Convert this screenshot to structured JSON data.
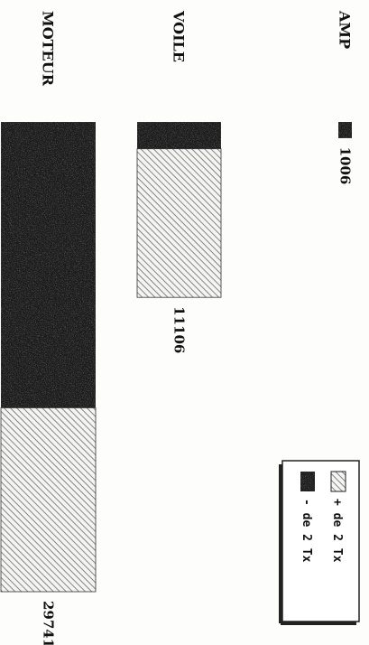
{
  "chart_data": {
    "type": "bar",
    "orientation": "rotated-90-clockwise",
    "stacked": true,
    "title": "",
    "xlabel": "",
    "ylabel": "",
    "categories": [
      "AMP",
      "VOILE",
      "MOTEUR"
    ],
    "totals_labels": [
      "1006",
      "11106",
      "29741"
    ],
    "totals": [
      1006,
      11106,
      29741
    ],
    "series": [
      {
        "name": "- de 2 Tx",
        "pattern": "dark-stipple",
        "values": [
          1006,
          1700,
          18100
        ]
      },
      {
        "name": "+ de 2 Tx",
        "pattern": "diagonal-hatch",
        "values": [
          0,
          9406,
          11641
        ]
      }
    ],
    "ylim": [
      0,
      29741
    ],
    "grid": false,
    "legend": "bottom-right",
    "colors": {
      "dark": "#1a1a1a",
      "hatch": "#6a6a6a",
      "background": "#fdfdfb"
    }
  }
}
